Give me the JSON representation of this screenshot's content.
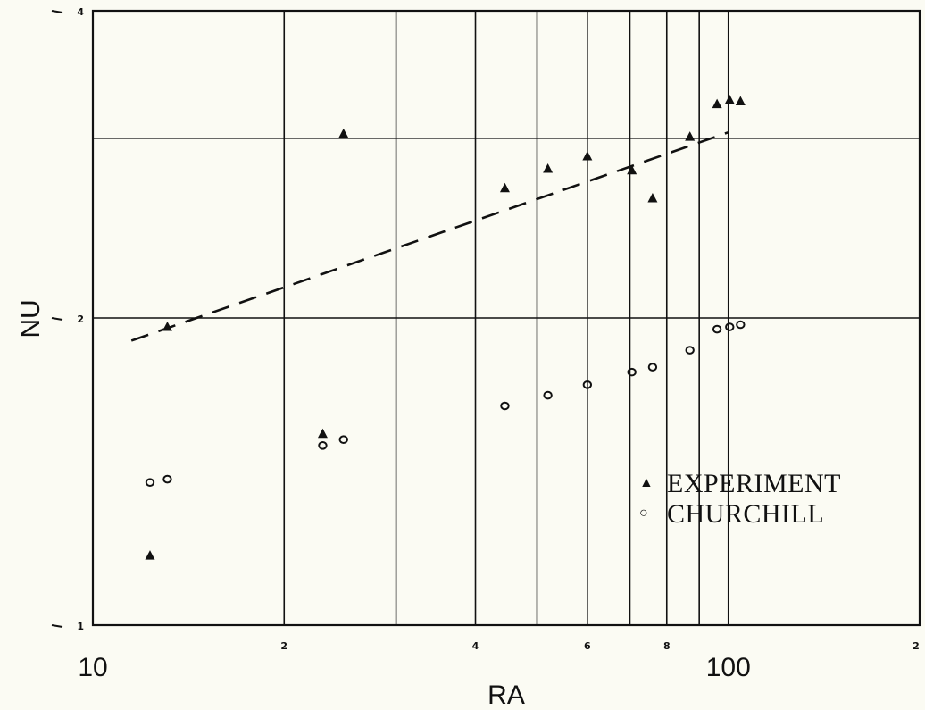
{
  "chart_data": {
    "type": "scatter",
    "x_scale": "log",
    "y_scale": "log",
    "xlabel": "RA",
    "ylabel": "NU",
    "xlim": [
      10,
      200
    ],
    "ylim": [
      1,
      4
    ],
    "grid": true,
    "x_ticks": [
      {
        "value": 10,
        "label": "10",
        "major": true
      },
      {
        "value": 20,
        "label": "2",
        "major": false
      },
      {
        "value": 30,
        "label": "",
        "major": false
      },
      {
        "value": 40,
        "label": "4",
        "major": false
      },
      {
        "value": 50,
        "label": "",
        "major": false
      },
      {
        "value": 60,
        "label": "6",
        "major": false
      },
      {
        "value": 70,
        "label": "",
        "major": false
      },
      {
        "value": 80,
        "label": "8",
        "major": false
      },
      {
        "value": 90,
        "label": "",
        "major": false
      },
      {
        "value": 100,
        "label": "100",
        "major": true
      },
      {
        "value": 200,
        "label": "2",
        "major": false
      }
    ],
    "y_ticks": [
      {
        "value": 1,
        "label": "1"
      },
      {
        "value": 2,
        "label": "2"
      },
      {
        "value": 3,
        "label": ""
      },
      {
        "value": 4,
        "label": "4"
      }
    ],
    "series": [
      {
        "name": "EXPERIMENT",
        "marker": "triangle",
        "points": [
          {
            "x": 12.3,
            "y": 1.17
          },
          {
            "x": 13.1,
            "y": 1.96
          },
          {
            "x": 23.0,
            "y": 1.54
          },
          {
            "x": 24.8,
            "y": 3.03
          },
          {
            "x": 44.5,
            "y": 2.68
          },
          {
            "x": 52.0,
            "y": 2.8
          },
          {
            "x": 60.0,
            "y": 2.88
          },
          {
            "x": 70.5,
            "y": 2.79
          },
          {
            "x": 76.0,
            "y": 2.62
          },
          {
            "x": 87.0,
            "y": 3.01
          },
          {
            "x": 96.0,
            "y": 3.24
          },
          {
            "x": 100.5,
            "y": 3.27
          },
          {
            "x": 104.5,
            "y": 3.26
          }
        ]
      },
      {
        "name": "CHURCHILL",
        "marker": "circle",
        "points": [
          {
            "x": 12.3,
            "y": 1.38
          },
          {
            "x": 13.1,
            "y": 1.39
          },
          {
            "x": 23.0,
            "y": 1.5
          },
          {
            "x": 24.8,
            "y": 1.52
          },
          {
            "x": 44.5,
            "y": 1.64
          },
          {
            "x": 52.0,
            "y": 1.68
          },
          {
            "x": 60.0,
            "y": 1.72
          },
          {
            "x": 70.5,
            "y": 1.77
          },
          {
            "x": 76.0,
            "y": 1.79
          },
          {
            "x": 87.0,
            "y": 1.86
          },
          {
            "x": 96.0,
            "y": 1.95
          },
          {
            "x": 100.5,
            "y": 1.96
          },
          {
            "x": 104.5,
            "y": 1.97
          }
        ]
      }
    ],
    "fit_line": {
      "style": "dashed",
      "x": [
        11.5,
        100
      ],
      "y": [
        1.9,
        3.04
      ]
    },
    "legend": {
      "placement": "bottom-right",
      "items": [
        {
          "symbol": "▲",
          "label": "EXPERIMENT"
        },
        {
          "symbol": "○",
          "label": "CHURCHILL"
        }
      ]
    }
  }
}
